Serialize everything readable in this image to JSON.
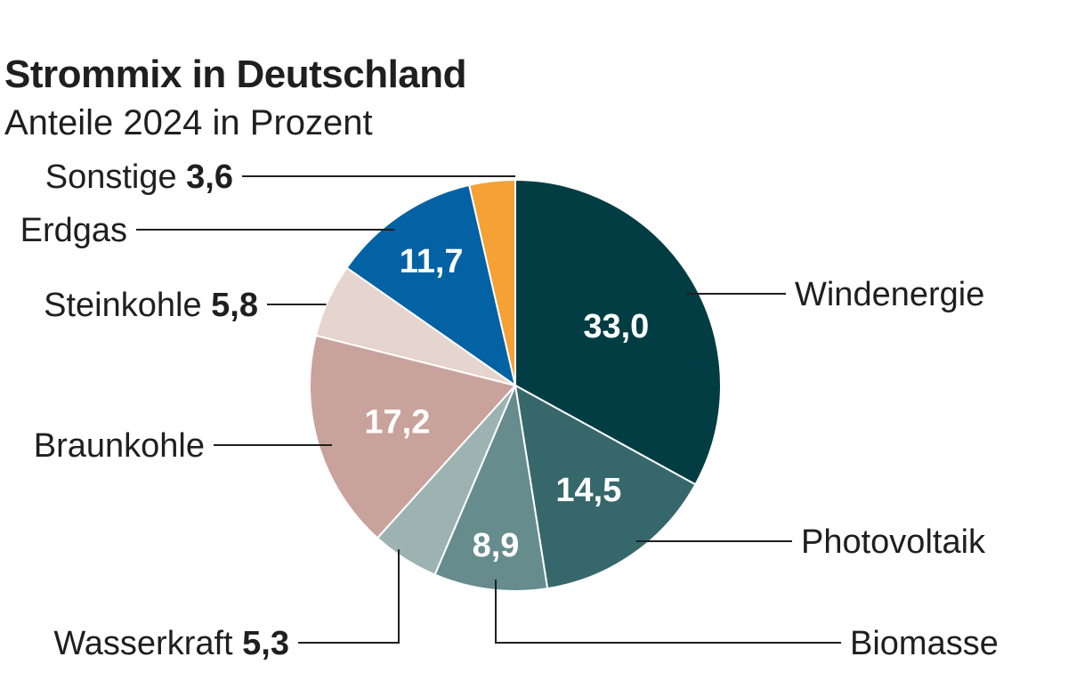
{
  "chart_data": {
    "type": "pie",
    "title": "Strommix in Deutschland",
    "subtitle": "Anteile 2024 in Prozent",
    "slices": [
      {
        "name": "Windenergie",
        "value": 33.0,
        "display": "33,0",
        "color": "#033d44",
        "label_color": "#ffffff",
        "value_position": "inside"
      },
      {
        "name": "Photovoltaik",
        "value": 14.5,
        "display": "14,5",
        "color": "#36686b",
        "label_color": "#ffffff",
        "value_position": "inside"
      },
      {
        "name": "Biomasse",
        "value": 8.9,
        "display": "8,9",
        "color": "#668c8d",
        "label_color": "#ffffff",
        "value_position": "inside"
      },
      {
        "name": "Wasserkraft",
        "value": 5.3,
        "display": "5,3",
        "color": "#9cb3b2",
        "label_color": "#1f1f1f",
        "value_position": "outside"
      },
      {
        "name": "Braunkohle",
        "value": 17.2,
        "display": "17,2",
        "color": "#c9a29c",
        "label_color": "#ffffff",
        "value_position": "inside"
      },
      {
        "name": "Steinkohle",
        "value": 5.8,
        "display": "5,8",
        "color": "#e6d4cf",
        "label_color": "#1f1f1f",
        "value_position": "outside"
      },
      {
        "name": "Erdgas",
        "value": 11.7,
        "display": "11,7",
        "color": "#0262a3",
        "label_color": "#ffffff",
        "value_position": "inside"
      },
      {
        "name": "Sonstige",
        "value": 3.6,
        "display": "3,6",
        "color": "#f5a135",
        "label_color": "#1f1f1f",
        "value_position": "outside"
      }
    ]
  }
}
